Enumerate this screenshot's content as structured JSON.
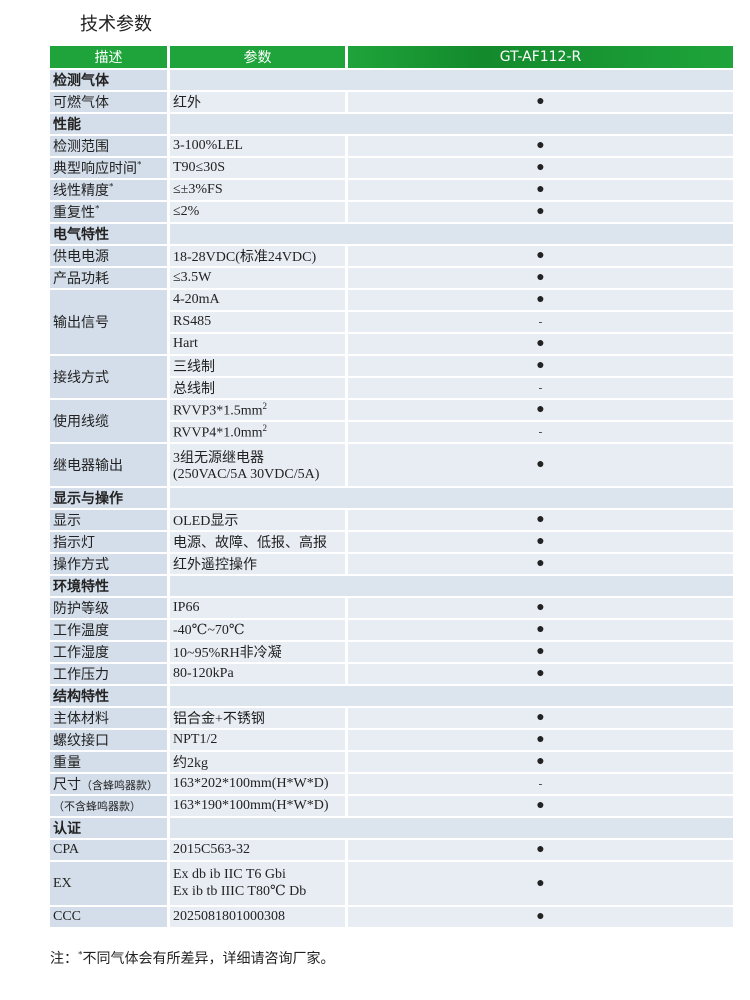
{
  "title": "技术参数",
  "table": {
    "header": [
      "描述",
      "参数",
      "GT-AF112-R"
    ],
    "sections": [
      {
        "title": "检测气体",
        "rows": [
          {
            "label": "可燃气体",
            "items": [
              {
                "param": "红外",
                "value": "●"
              }
            ]
          }
        ]
      },
      {
        "title": "性能",
        "rows": [
          {
            "label": "检测范围",
            "items": [
              {
                "param": "3-100%LEL",
                "value": "●"
              }
            ]
          },
          {
            "label": "典型响应时间",
            "label_sup": "*",
            "items": [
              {
                "param": "T90≤30S",
                "value": "●"
              }
            ]
          },
          {
            "label": "线性精度",
            "label_sup": "*",
            "items": [
              {
                "param": "≤±3%FS",
                "value": "●"
              }
            ]
          },
          {
            "label": "重复性",
            "label_sup": "*",
            "items": [
              {
                "param": "≤2%",
                "value": "●"
              }
            ]
          }
        ]
      },
      {
        "title": "电气特性",
        "rows": [
          {
            "label": "供电电源",
            "items": [
              {
                "param": "18-28VDC(标准24VDC)",
                "value": "●"
              }
            ]
          },
          {
            "label": "产品功耗",
            "items": [
              {
                "param": "≤3.5W",
                "value": "●"
              }
            ]
          },
          {
            "label": "输出信号",
            "items": [
              {
                "param": "4-20mA",
                "value": "●"
              },
              {
                "param": "RS485",
                "value": "-"
              },
              {
                "param": "Hart",
                "value": "●"
              }
            ]
          },
          {
            "label": "接线方式",
            "items": [
              {
                "param": "三线制",
                "value": "●"
              },
              {
                "param": "总线制",
                "value": "-"
              }
            ]
          },
          {
            "label": "使用线缆",
            "items": [
              {
                "param": "RVVP3*1.5mm",
                "sup": "2",
                "value": "●"
              },
              {
                "param": "RVVP4*1.0mm",
                "sup": "2",
                "value": "-"
              }
            ]
          },
          {
            "label": "继电器输出",
            "items": [
              {
                "lines": [
                  "3组无源继电器",
                  "(250VAC/5A 30VDC/5A)"
                ],
                "value": "●"
              }
            ]
          }
        ]
      },
      {
        "title": "显示与操作",
        "rows": [
          {
            "label": "显示",
            "items": [
              {
                "param": "OLED显示",
                "value": "●"
              }
            ]
          },
          {
            "label": "指示灯",
            "items": [
              {
                "param": "电源、故障、低报、高报",
                "value": "●"
              }
            ]
          },
          {
            "label": "操作方式",
            "items": [
              {
                "param": "红外遥控操作",
                "value": "●"
              }
            ]
          }
        ]
      },
      {
        "title": "环境特性",
        "rows": [
          {
            "label": "防护等级",
            "items": [
              {
                "param": "IP66",
                "value": "●"
              }
            ]
          },
          {
            "label": "工作温度",
            "items": [
              {
                "param": "-40℃~70℃",
                "value": "●"
              }
            ]
          },
          {
            "label": "工作湿度",
            "items": [
              {
                "param": "10~95%RH非冷凝",
                "value": "●"
              }
            ]
          },
          {
            "label": "工作压力",
            "items": [
              {
                "param": "80-120kPa",
                "value": "●"
              }
            ]
          }
        ]
      },
      {
        "title": "结构特性",
        "rows": [
          {
            "label": "主体材料",
            "items": [
              {
                "param": "铝合金+不锈钢",
                "value": "●"
              }
            ]
          },
          {
            "label": "螺纹接口",
            "items": [
              {
                "param": "NPT1/2",
                "value": "●"
              }
            ]
          },
          {
            "label": "重量",
            "items": [
              {
                "param": "约2kg",
                "value": "●"
              }
            ]
          },
          {
            "label": "尺寸",
            "label_note": "（含蜂鸣器款）",
            "items": [
              {
                "param": "163*202*100mm(H*W*D)",
                "value": "-"
              }
            ]
          },
          {
            "label_note": "（不含蜂鸣器款）",
            "items": [
              {
                "param": "163*190*100mm(H*W*D)",
                "value": "●"
              }
            ]
          }
        ]
      },
      {
        "title": "认证",
        "rows": [
          {
            "label": "CPA",
            "items": [
              {
                "param": "2015C563-32",
                "value": "●"
              }
            ]
          },
          {
            "label": "EX",
            "items": [
              {
                "lines": [
                  "Ex db ib IIC T6 Gbi",
                  "Ex ib tb IIIC T80℃ Db"
                ],
                "value": "●"
              }
            ]
          },
          {
            "label": "CCC",
            "items": [
              {
                "param": "2025081801000308",
                "value": "●"
              }
            ]
          }
        ]
      }
    ]
  },
  "note": {
    "prefix": "注：",
    "sup": "*",
    "text": "不同气体会有所差异，详细请咨询厂家。"
  }
}
